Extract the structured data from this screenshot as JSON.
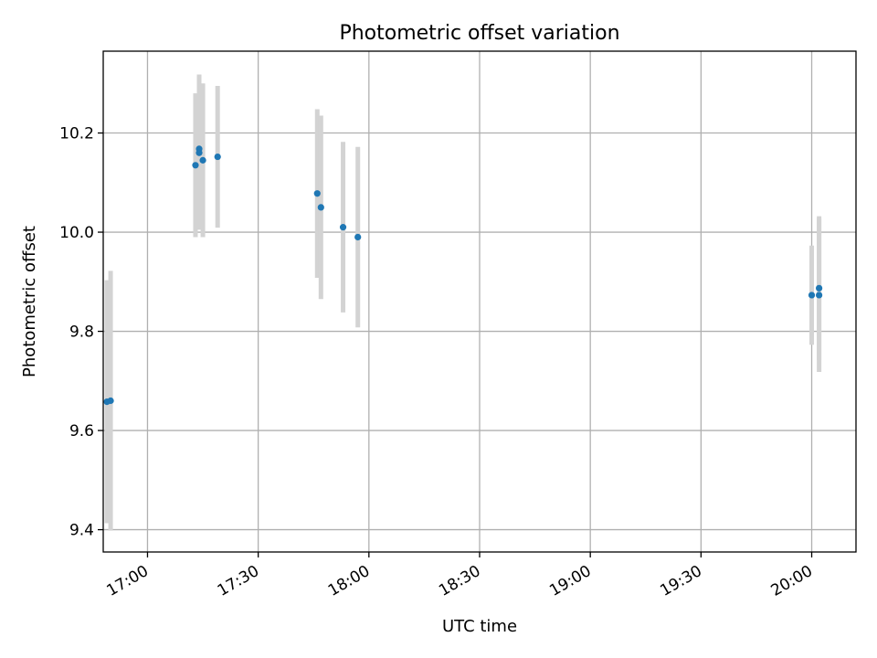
{
  "chart_data": {
    "type": "scatter",
    "title": "Photometric offset variation",
    "xlabel": "UTC time",
    "ylabel": "Photometric offset",
    "x_ticks": [
      "17:00",
      "17:30",
      "18:00",
      "18:30",
      "19:00",
      "19:30",
      "20:00"
    ],
    "y_ticks": [
      "9.4",
      "9.6",
      "9.8",
      "10.0",
      "10.2"
    ],
    "xlim": [
      "16:48",
      "20:12"
    ],
    "ylim": [
      9.355,
      10.365
    ],
    "grid": true,
    "marker_color": "#1f77b4",
    "errorbar_color": "#d3d3d3",
    "points": [
      {
        "x": "16:49",
        "y": 9.658,
        "err": 0.245
      },
      {
        "x": "16:50",
        "y": 9.66,
        "err": 0.262
      },
      {
        "x": "17:13",
        "y": 10.135,
        "err": 0.145
      },
      {
        "x": "17:14",
        "y": 10.168,
        "err": 0.15
      },
      {
        "x": "17:14",
        "y": 10.16,
        "err": 0.155
      },
      {
        "x": "17:15",
        "y": 10.145,
        "err": 0.155
      },
      {
        "x": "17:19",
        "y": 10.152,
        "err": 0.143
      },
      {
        "x": "17:46",
        "y": 10.078,
        "err": 0.17
      },
      {
        "x": "17:47",
        "y": 10.05,
        "err": 0.185
      },
      {
        "x": "17:53",
        "y": 10.01,
        "err": 0.172
      },
      {
        "x": "17:57",
        "y": 9.99,
        "err": 0.182
      },
      {
        "x": "20:00",
        "y": 9.873,
        "err": 0.1
      },
      {
        "x": "20:02",
        "y": 9.873,
        "err": 0.155
      },
      {
        "x": "20:02",
        "y": 9.887,
        "err": 0.145
      }
    ]
  }
}
